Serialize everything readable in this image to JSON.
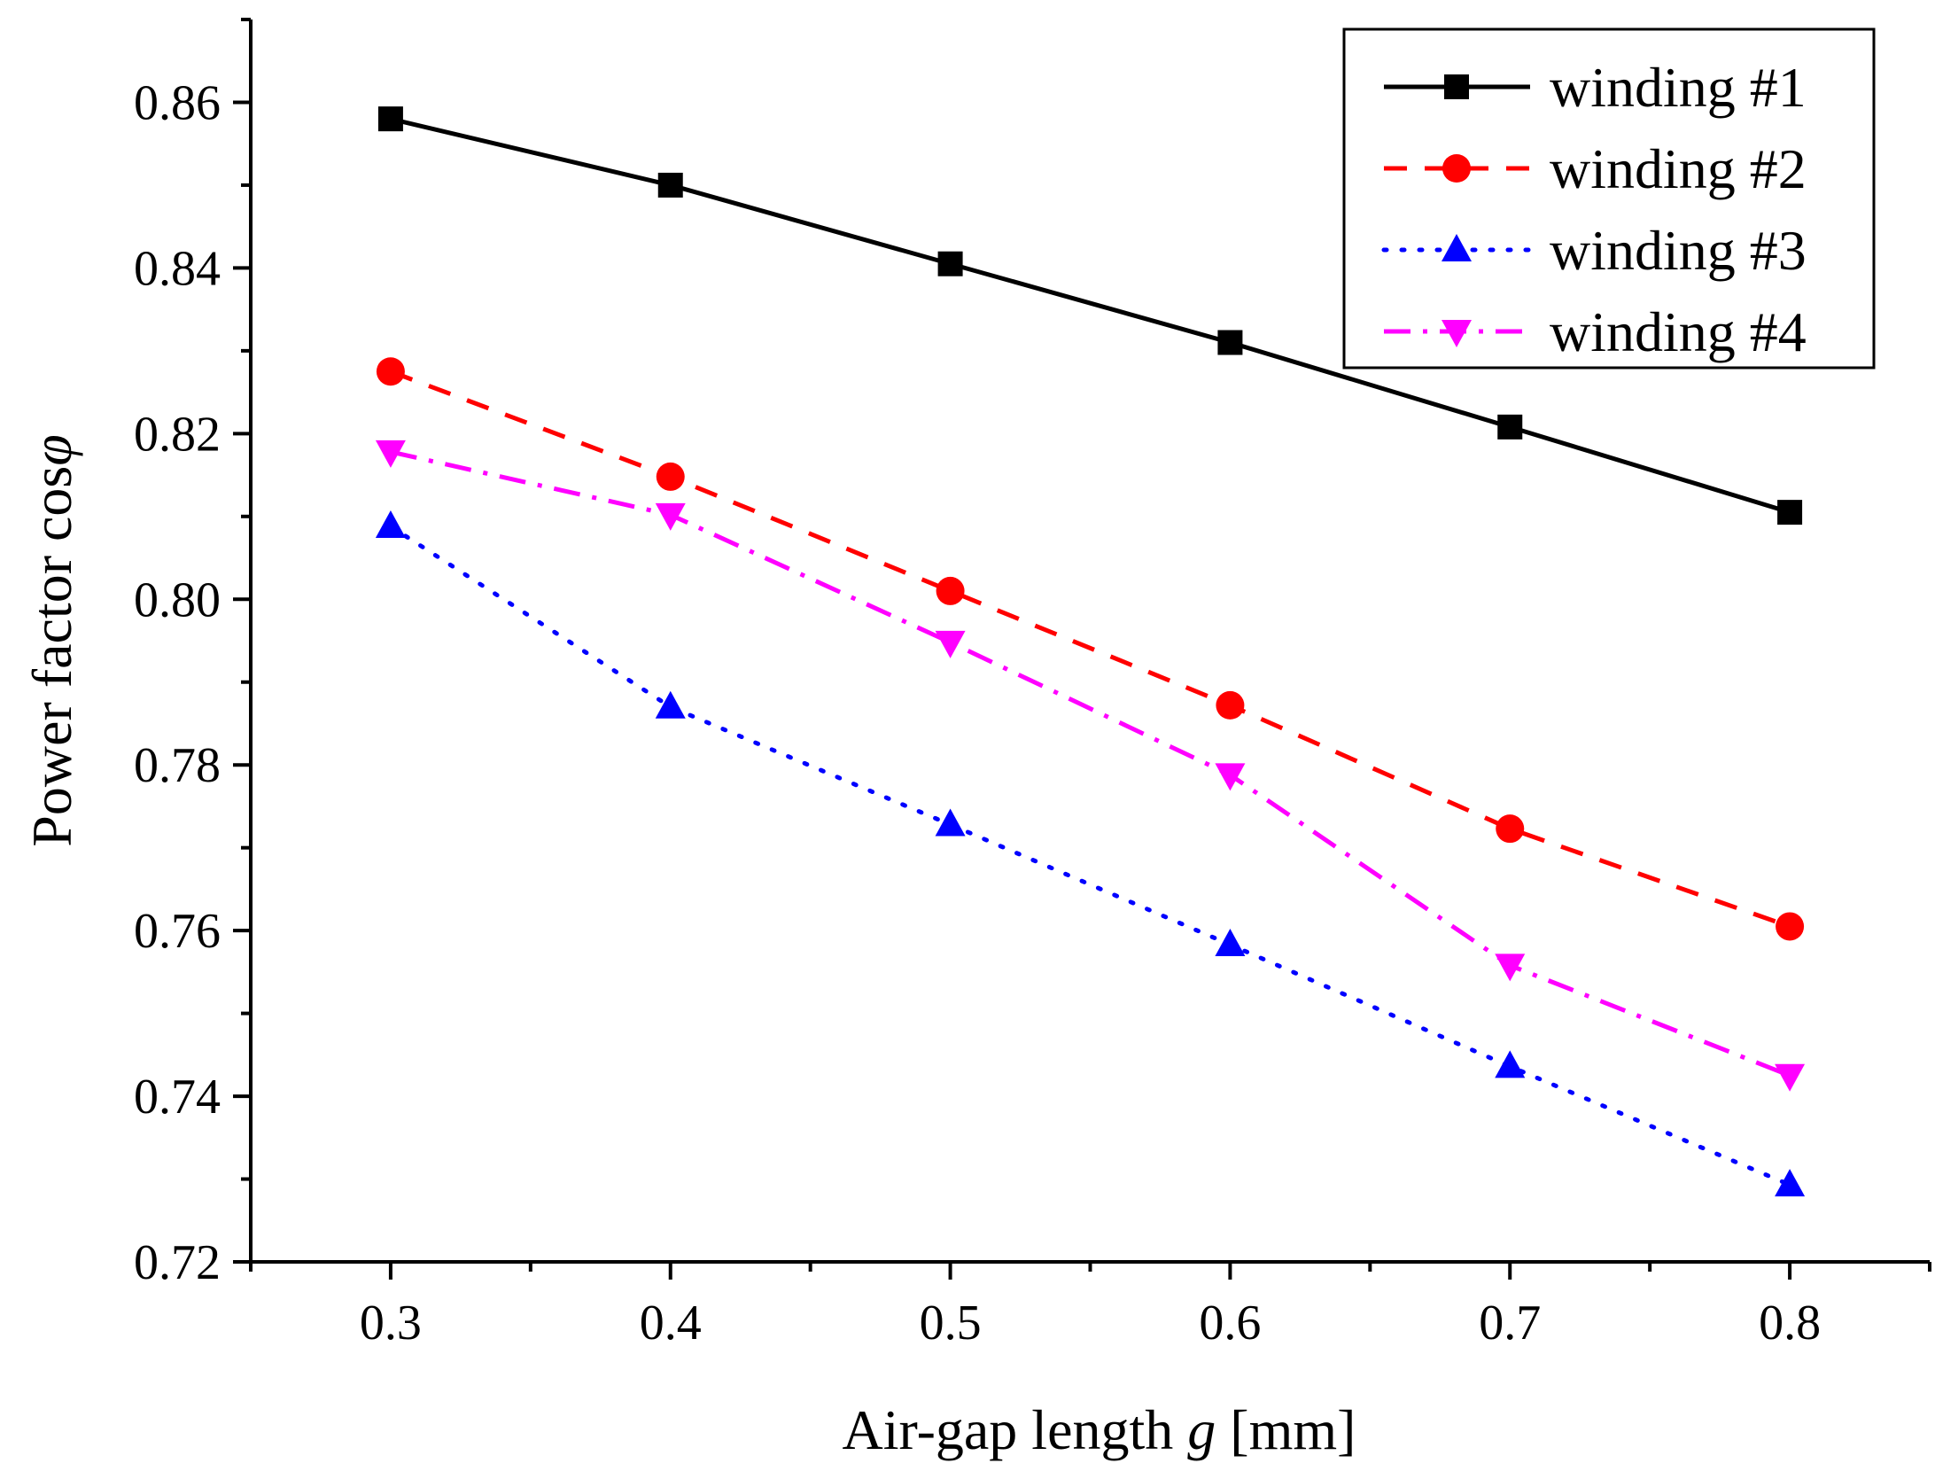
{
  "chart_data": {
    "type": "line",
    "title": "",
    "xlabel_prefix": "Air-gap length ",
    "xlabel_var": "g",
    "xlabel_suffix": " [mm]",
    "ylabel_prefix": "Power factor cos",
    "ylabel_var": "φ",
    "x": [
      0.3,
      0.4,
      0.5,
      0.6,
      0.7,
      0.8
    ],
    "xlim": [
      0.25,
      0.85
    ],
    "ylim": [
      0.72,
      0.87
    ],
    "x_ticks": [
      "0.3",
      "0.4",
      "0.5",
      "0.6",
      "0.7",
      "0.8"
    ],
    "y_ticks": [
      "0.72",
      "0.74",
      "0.76",
      "0.78",
      "0.80",
      "0.82",
      "0.84",
      "0.86"
    ],
    "legend_position": "top-right",
    "series": [
      {
        "name": "winding #1",
        "values": [
          0.858,
          0.85,
          0.8405,
          0.831,
          0.8208,
          0.8105
        ],
        "color": "#000000",
        "marker": "square",
        "dash": "solid"
      },
      {
        "name": "winding #2",
        "values": [
          0.8275,
          0.8148,
          0.801,
          0.7872,
          0.7723,
          0.7605
        ],
        "color": "#ff0000",
        "marker": "circle",
        "dash": "dash"
      },
      {
        "name": "winding #3",
        "values": [
          0.8088,
          0.787,
          0.7728,
          0.7583,
          0.7436,
          0.7293
        ],
        "color": "#0000ff",
        "marker": "triangle-up",
        "dash": "dot"
      },
      {
        "name": "winding #4",
        "values": [
          0.8178,
          0.8102,
          0.7948,
          0.7788,
          0.7558,
          0.7425
        ],
        "color": "#ff00ff",
        "marker": "triangle-down",
        "dash": "dashdot"
      }
    ]
  }
}
